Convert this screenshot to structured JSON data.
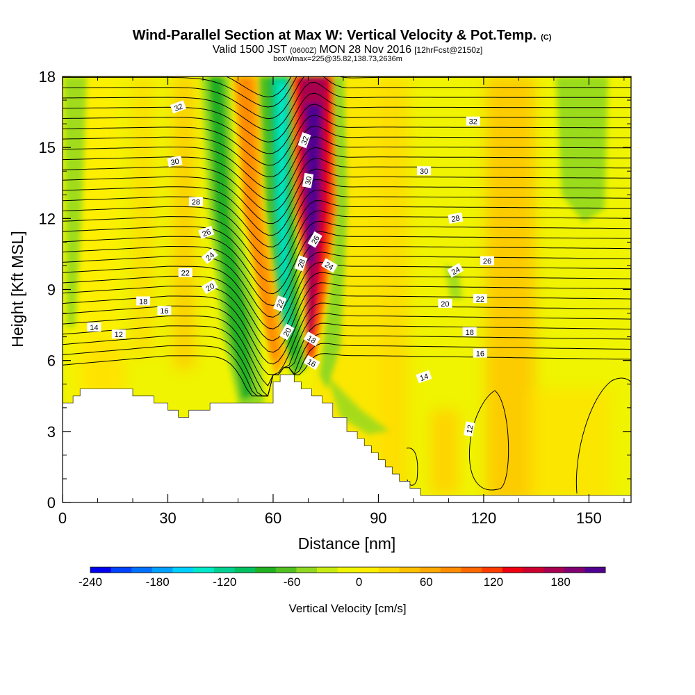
{
  "header": {
    "title_main": "Wind-Parallel Section at Max W: Vertical Velocity & Pot.Temp.",
    "title_mark": "(C)",
    "subtitle_a": "Valid 1500 JST",
    "subtitle_b": "(0600Z)",
    "subtitle_c": "MON 28 Nov 2016",
    "subtitle_d": "[12hrFcst@2150z]",
    "subtitle_2": "boxWmax=225@35.82,138.73,2636m"
  },
  "chart_data": {
    "type": "heatmap",
    "xlabel": "Distance [nm]",
    "ylabel": "Height [Kft MSL]",
    "xlim": [
      0,
      162
    ],
    "ylim": [
      0,
      18
    ],
    "x_ticks": [
      "0",
      "30",
      "60",
      "90",
      "120",
      "150"
    ],
    "y_ticks": [
      "0",
      "3",
      "6",
      "9",
      "12",
      "15",
      "18"
    ],
    "colorbar": {
      "label": "Vertical Velocity [cm/s]",
      "range": [
        -240,
        220
      ],
      "tick_labels": [
        "-240",
        "-180",
        "-120",
        "-60",
        "0",
        "60",
        "120",
        "180"
      ],
      "colors": [
        "#0000ee",
        "#0040ff",
        "#0070ff",
        "#00a0ff",
        "#00d0ff",
        "#00e8c8",
        "#00d090",
        "#00c060",
        "#20b020",
        "#50c020",
        "#90d820",
        "#c8ec10",
        "#f0f400",
        "#ffee00",
        "#ffd800",
        "#ffc000",
        "#ffa800",
        "#ff8c00",
        "#ff6800",
        "#ff3c00",
        "#ee0010",
        "#cc0030",
        "#a80050",
        "#800070",
        "#500090"
      ]
    },
    "terrain_kft": [
      [
        0,
        4.2
      ],
      [
        3,
        4.2
      ],
      [
        3,
        4.5
      ],
      [
        5,
        4.5
      ],
      [
        5,
        4.8
      ],
      [
        20,
        4.8
      ],
      [
        20,
        4.5
      ],
      [
        26,
        4.5
      ],
      [
        26,
        4.2
      ],
      [
        30,
        4.2
      ],
      [
        30,
        3.9
      ],
      [
        33,
        3.9
      ],
      [
        33,
        3.6
      ],
      [
        36,
        3.6
      ],
      [
        36,
        3.9
      ],
      [
        42,
        3.9
      ],
      [
        42,
        4.2
      ],
      [
        60,
        4.2
      ],
      [
        60,
        5.1
      ],
      [
        62,
        5.1
      ],
      [
        62,
        5.4
      ],
      [
        66,
        5.4
      ],
      [
        66,
        5.1
      ],
      [
        68,
        5.1
      ],
      [
        68,
        4.8
      ],
      [
        71,
        4.8
      ],
      [
        71,
        4.5
      ],
      [
        74,
        4.5
      ],
      [
        74,
        4.2
      ],
      [
        77,
        4.2
      ],
      [
        77,
        3.6
      ],
      [
        81,
        3.6
      ],
      [
        81,
        3.0
      ],
      [
        84,
        3.0
      ],
      [
        84,
        2.7
      ],
      [
        86,
        2.7
      ],
      [
        86,
        2.4
      ],
      [
        88,
        2.4
      ],
      [
        88,
        2.1
      ],
      [
        90,
        2.1
      ],
      [
        90,
        1.8
      ],
      [
        92,
        1.8
      ],
      [
        92,
        1.5
      ],
      [
        94,
        1.5
      ],
      [
        94,
        1.2
      ],
      [
        96,
        1.2
      ],
      [
        96,
        0.9
      ],
      [
        99,
        0.9
      ],
      [
        99,
        0.6
      ],
      [
        102,
        0.6
      ],
      [
        102,
        0.3
      ],
      [
        162,
        0.3
      ]
    ],
    "isentrope_labels": [
      {
        "text": "32",
        "x": 33,
        "y": 16.7,
        "r": -20
      },
      {
        "text": "32",
        "x": 117,
        "y": 16.1,
        "r": 0
      },
      {
        "text": "32",
        "x": 69,
        "y": 15.3,
        "r": -70
      },
      {
        "text": "30",
        "x": 70,
        "y": 13.6,
        "r": -80
      },
      {
        "text": "30",
        "x": 32,
        "y": 14.4,
        "r": -10
      },
      {
        "text": "30",
        "x": 103,
        "y": 14.0,
        "r": 0
      },
      {
        "text": "28",
        "x": 38,
        "y": 12.7,
        "r": 0
      },
      {
        "text": "28",
        "x": 112,
        "y": 12.0,
        "r": -10
      },
      {
        "text": "28",
        "x": 68,
        "y": 10.1,
        "r": -70
      },
      {
        "text": "26",
        "x": 41,
        "y": 11.4,
        "r": -20
      },
      {
        "text": "26",
        "x": 72,
        "y": 11.1,
        "r": -60
      },
      {
        "text": "26",
        "x": 121,
        "y": 10.2,
        "r": 0
      },
      {
        "text": "24",
        "x": 42,
        "y": 10.4,
        "r": -40
      },
      {
        "text": "24",
        "x": 76,
        "y": 10.0,
        "r": 30
      },
      {
        "text": "24",
        "x": 112,
        "y": 9.8,
        "r": -30
      },
      {
        "text": "22",
        "x": 35,
        "y": 9.7,
        "r": 0
      },
      {
        "text": "22",
        "x": 62,
        "y": 8.4,
        "r": -70
      },
      {
        "text": "22",
        "x": 119,
        "y": 8.6,
        "r": 0
      },
      {
        "text": "20",
        "x": 42,
        "y": 9.1,
        "r": -30
      },
      {
        "text": "20",
        "x": 64,
        "y": 7.2,
        "r": -60
      },
      {
        "text": "20",
        "x": 109,
        "y": 8.4,
        "r": 0
      },
      {
        "text": "18",
        "x": 23,
        "y": 8.5,
        "r": 0
      },
      {
        "text": "18",
        "x": 71,
        "y": 6.9,
        "r": 30
      },
      {
        "text": "18",
        "x": 116,
        "y": 7.2,
        "r": 0
      },
      {
        "text": "16",
        "x": 29,
        "y": 8.1,
        "r": 0
      },
      {
        "text": "16",
        "x": 71,
        "y": 5.9,
        "r": 30
      },
      {
        "text": "16",
        "x": 119,
        "y": 6.3,
        "r": 0
      },
      {
        "text": "14",
        "x": 9,
        "y": 7.4,
        "r": 0
      },
      {
        "text": "14",
        "x": 103,
        "y": 5.3,
        "r": -20
      },
      {
        "text": "12",
        "x": 16,
        "y": 7.1,
        "r": 0
      },
      {
        "text": "12",
        "x": 116,
        "y": 3.1,
        "r": -80
      }
    ]
  }
}
